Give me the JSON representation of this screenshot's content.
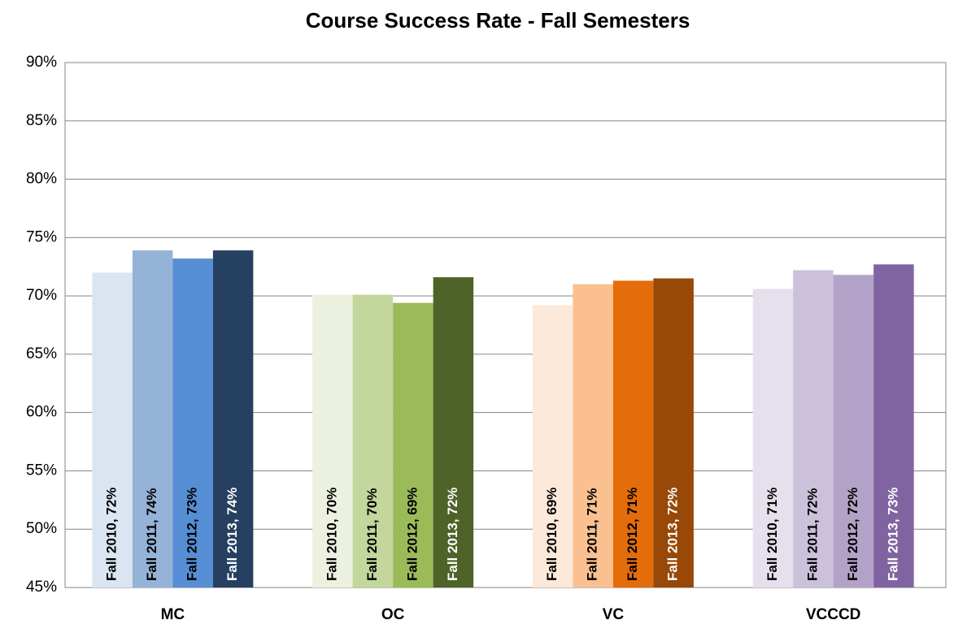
{
  "chart_data": {
    "type": "bar",
    "title": "Course Success Rate - Fall Semesters",
    "categories": [
      "MC",
      "OC",
      "VC",
      "VCCCD"
    ],
    "series": [
      {
        "name": "Fall 2010",
        "colors": [
          "#dbe5f1",
          "#ebf1de",
          "#fde9d9",
          "#e6e0ec"
        ],
        "label_color": "#000000",
        "values": [
          72.0,
          70.1,
          69.2,
          70.6
        ],
        "value_labels": [
          "Fall 2010, 72%",
          "Fall 2010, 70%",
          "Fall 2010, 69%",
          "Fall 2010, 71%"
        ]
      },
      {
        "name": "Fall 2011",
        "colors": [
          "#95b3d7",
          "#c3d69b",
          "#fac090",
          "#ccc1da"
        ],
        "label_color": "#000000",
        "values": [
          73.9,
          70.1,
          71.0,
          72.2
        ],
        "value_labels": [
          "Fall 2011, 74%",
          "Fall 2011, 70%",
          "Fall 2011, 71%",
          "Fall 2011, 72%"
        ]
      },
      {
        "name": "Fall 2012",
        "colors": [
          "#558ed5",
          "#9bbb59",
          "#e46c0a",
          "#b3a2c7"
        ],
        "label_color": "#000000",
        "values": [
          73.2,
          69.4,
          71.3,
          71.8
        ],
        "value_labels": [
          "Fall 2012, 73%",
          "Fall 2012, 69%",
          "Fall 2012, 71%",
          "Fall 2012, 72%"
        ]
      },
      {
        "name": "Fall 2013",
        "colors": [
          "#254061",
          "#4f6228",
          "#984807",
          "#8064a2"
        ],
        "label_color": "#ffffff",
        "values": [
          73.9,
          71.6,
          71.5,
          72.7
        ],
        "value_labels": [
          "Fall 2013, 74%",
          "Fall 2013, 72%",
          "Fall 2013, 72%",
          "Fall 2013, 73%"
        ]
      }
    ],
    "ylim": [
      45,
      90
    ],
    "yticks": [
      {
        "value": 45,
        "label": "45%"
      },
      {
        "value": 50,
        "label": "50%"
      },
      {
        "value": 55,
        "label": "55%"
      },
      {
        "value": 60,
        "label": "60%"
      },
      {
        "value": 65,
        "label": "65%"
      },
      {
        "value": 70,
        "label": "70%"
      },
      {
        "value": 75,
        "label": "75%"
      },
      {
        "value": 80,
        "label": "80%"
      },
      {
        "value": 85,
        "label": "85%"
      },
      {
        "value": 90,
        "label": "90%"
      }
    ],
    "grid": true
  }
}
